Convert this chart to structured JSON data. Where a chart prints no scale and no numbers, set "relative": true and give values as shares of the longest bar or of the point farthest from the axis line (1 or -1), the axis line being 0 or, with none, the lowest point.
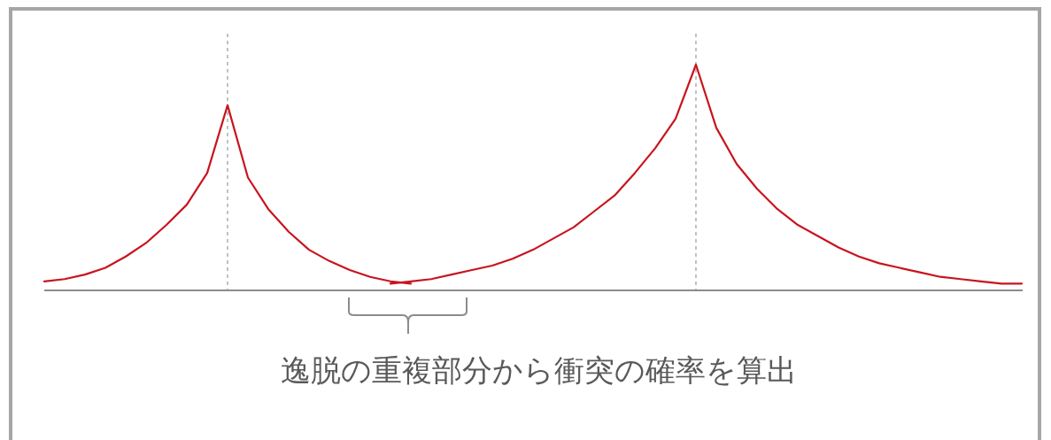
{
  "chart_data": {
    "type": "line",
    "relative": true,
    "categories": [
      null,
      null,
      null,
      null,
      null,
      null,
      null,
      null,
      null,
      null,
      null,
      null,
      null,
      null,
      null,
      null,
      null,
      null,
      null,
      null,
      null,
      null,
      null,
      null,
      null,
      null,
      null,
      null,
      null,
      null,
      null,
      null,
      null,
      null,
      null,
      null,
      null,
      null,
      null,
      null,
      null,
      null,
      null,
      null,
      null,
      null,
      null,
      null,
      null
    ],
    "series": [
      {
        "color": "#c8141e",
        "values": [
          0.04,
          0.05,
          0.07,
          0.1,
          0.15,
          0.21,
          0.29,
          0.38,
          0.52,
          0.82,
          0.5,
          0.36,
          0.26,
          0.18,
          0.13,
          0.09,
          0.06,
          0.04,
          0.03,
          null,
          null,
          null,
          null,
          null,
          null,
          null,
          null,
          null,
          null,
          null,
          null,
          null,
          null,
          null,
          null,
          null,
          null,
          null,
          null,
          null,
          null,
          null,
          null,
          null,
          null,
          null,
          null,
          null,
          null
        ]
      },
      {
        "color": "#c8141e",
        "values": [
          null,
          null,
          null,
          null,
          null,
          null,
          null,
          null,
          null,
          null,
          null,
          null,
          null,
          null,
          null,
          null,
          null,
          0.03,
          0.04,
          0.05,
          0.07,
          0.09,
          0.11,
          0.14,
          0.18,
          0.23,
          0.28,
          0.35,
          0.42,
          0.52,
          0.63,
          0.76,
          1,
          0.72,
          0.56,
          0.45,
          0.36,
          0.29,
          0.24,
          0.19,
          0.15,
          0.12,
          0.1,
          0.08,
          0.06,
          0.05,
          0.04,
          0.03,
          0.03
        ]
      }
    ],
    "annotations": [
      "逸脱の重複部分から衝突の確率を算出"
    ]
  }
}
